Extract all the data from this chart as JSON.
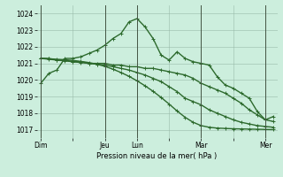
{
  "bg_color": "#cceedd",
  "grid_color": "#99bbaa",
  "line_color": "#2d6a2d",
  "ylim": [
    1016.5,
    1024.5
  ],
  "yticks": [
    1017,
    1018,
    1019,
    1020,
    1021,
    1022,
    1023,
    1024
  ],
  "xlabel": "Pression niveau de la mer( hPa )",
  "xtick_labels": [
    "Dim",
    "",
    "Jeu",
    "Lun",
    "",
    "Mar",
    "",
    "Mer"
  ],
  "xtick_positions": [
    0,
    4,
    8,
    12,
    16,
    20,
    24,
    28
  ],
  "vlines": [
    0,
    8,
    12,
    20,
    28
  ],
  "n_points": 30,
  "series": [
    [
      1019.8,
      1020.4,
      1020.6,
      1021.3,
      1021.3,
      1021.4,
      1021.6,
      1021.8,
      1022.1,
      1022.5,
      1022.8,
      1023.5,
      1023.7,
      1023.2,
      1022.5,
      1021.5,
      1021.2,
      1021.7,
      1021.3,
      1021.1,
      1021.0,
      1020.9,
      1020.2,
      1019.7,
      1019.5,
      1019.2,
      1018.9,
      1018.1,
      1017.6,
      1017.8
    ],
    [
      1021.3,
      1021.3,
      1021.2,
      1021.2,
      1021.1,
      1021.1,
      1021.0,
      1021.0,
      1021.0,
      1020.9,
      1020.9,
      1020.8,
      1020.8,
      1020.7,
      1020.7,
      1020.6,
      1020.5,
      1020.4,
      1020.3,
      1020.1,
      1019.8,
      1019.6,
      1019.4,
      1019.2,
      1018.9,
      1018.6,
      1018.2,
      1017.9,
      1017.6,
      1017.5
    ],
    [
      1021.3,
      1021.25,
      1021.2,
      1021.15,
      1021.1,
      1021.05,
      1021.0,
      1020.95,
      1020.9,
      1020.8,
      1020.7,
      1020.6,
      1020.45,
      1020.3,
      1020.1,
      1019.9,
      1019.6,
      1019.3,
      1018.9,
      1018.7,
      1018.5,
      1018.2,
      1018.0,
      1017.8,
      1017.6,
      1017.45,
      1017.35,
      1017.25,
      1017.2,
      1017.15
    ],
    [
      1021.3,
      1021.28,
      1021.25,
      1021.22,
      1021.18,
      1021.12,
      1021.05,
      1020.95,
      1020.82,
      1020.65,
      1020.45,
      1020.22,
      1019.95,
      1019.65,
      1019.32,
      1018.95,
      1018.55,
      1018.13,
      1017.75,
      1017.45,
      1017.25,
      1017.15,
      1017.1,
      1017.08,
      1017.06,
      1017.05,
      1017.04,
      1017.03,
      1017.02,
      1017.01
    ]
  ]
}
